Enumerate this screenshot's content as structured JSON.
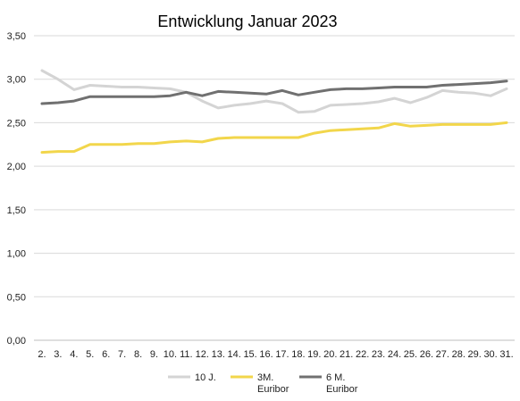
{
  "chart_data": {
    "type": "line",
    "title": "Entwicklung Januar 2023",
    "xlabel": "",
    "ylabel": "",
    "categories": [
      "2.",
      "3.",
      "4.",
      "5.",
      "6.",
      "7.",
      "8.",
      "9.",
      "10.",
      "11.",
      "12.",
      "13.",
      "14.",
      "15.",
      "16.",
      "17.",
      "18.",
      "19.",
      "20.",
      "21.",
      "22.",
      "23.",
      "24.",
      "25.",
      "26.",
      "27.",
      "28.",
      "29.",
      "30.",
      "31."
    ],
    "ylim": [
      0,
      3.5
    ],
    "yticks": [
      "0,00",
      "0,50",
      "1,00",
      "1,50",
      "2,00",
      "2,50",
      "3,00",
      "3,50"
    ],
    "ytick_values": [
      0,
      0.5,
      1.0,
      1.5,
      2.0,
      2.5,
      3.0,
      3.5
    ],
    "grid": true,
    "legend_position": "bottom",
    "series": [
      {
        "name": "10 J.",
        "color": "#d4d4d4",
        "values": [
          3.1,
          3.0,
          2.88,
          2.93,
          2.92,
          2.91,
          2.91,
          2.9,
          2.89,
          2.85,
          2.75,
          2.67,
          2.7,
          2.72,
          2.75,
          2.72,
          2.62,
          2.63,
          2.7,
          2.71,
          2.72,
          2.74,
          2.78,
          2.73,
          2.79,
          2.87,
          2.85,
          2.84,
          2.81,
          2.89
        ]
      },
      {
        "name": "3M. Euribor",
        "legend_lines": [
          "3M.",
          "Euribor"
        ],
        "color": "#f2d64b",
        "values": [
          2.16,
          2.17,
          2.17,
          2.25,
          2.25,
          2.25,
          2.26,
          2.26,
          2.28,
          2.29,
          2.28,
          2.32,
          2.33,
          2.33,
          2.33,
          2.33,
          2.33,
          2.38,
          2.41,
          2.42,
          2.43,
          2.44,
          2.49,
          2.46,
          2.47,
          2.48,
          2.48,
          2.48,
          2.48,
          2.5
        ]
      },
      {
        "name": "6 M. Euribor",
        "legend_lines": [
          "6 M.",
          "Euribor"
        ],
        "color": "#707070",
        "values": [
          2.72,
          2.73,
          2.75,
          2.8,
          2.8,
          2.8,
          2.8,
          2.8,
          2.81,
          2.85,
          2.81,
          2.86,
          2.85,
          2.84,
          2.83,
          2.87,
          2.82,
          2.85,
          2.88,
          2.89,
          2.89,
          2.9,
          2.91,
          2.91,
          2.91,
          2.93,
          2.94,
          2.95,
          2.96,
          2.98
        ]
      }
    ]
  }
}
